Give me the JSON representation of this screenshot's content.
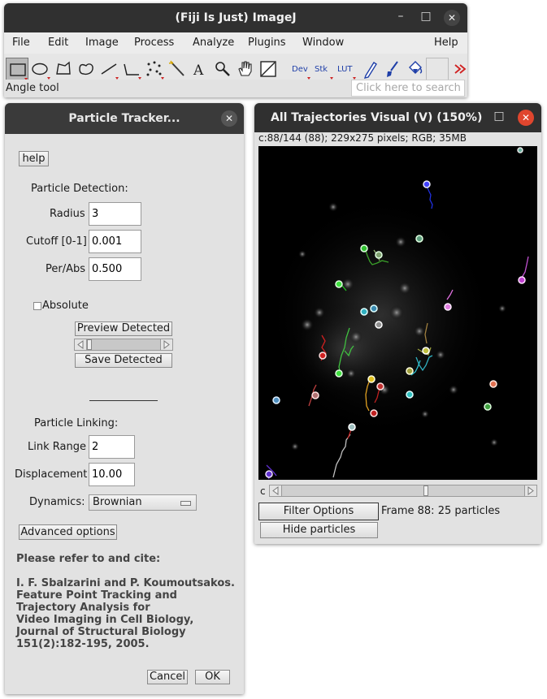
{
  "imagej": {
    "title": "(Fiji Is Just) ImageJ",
    "menu": [
      "File",
      "Edit",
      "Image",
      "Process",
      "Analyze",
      "Plugins",
      "Window",
      "Help"
    ],
    "tools": [
      "rectangle-tool",
      "oval-tool",
      "polygon-tool",
      "freehand-tool",
      "line-tool",
      "angle-tool",
      "multipoint-tool",
      "wand-tool",
      "text-tool",
      "magnifying-glass-tool",
      "hand-tool",
      "color-picker-tool",
      "Dev",
      "Stk",
      "LUT",
      "pencil-tool",
      "brush-tool",
      "flood-fill-tool",
      "empty-slot",
      "more-tools"
    ],
    "status": "Angle tool",
    "search_placeholder": "Click here to search"
  },
  "tracker": {
    "title": "Particle Tracker...",
    "help_label": "help",
    "detection_heading": "Particle Detection:",
    "radius_label": "Radius",
    "radius_value": "3",
    "cutoff_label": "Cutoff [0-1]",
    "cutoff_value": "0.001",
    "perabs_label": "Per/Abs",
    "perabs_value": "0.500",
    "absolute_label": "Absolute",
    "absolute_checked": false,
    "preview_label": "Preview Detected",
    "save_label": "Save Detected",
    "linking_heading": "Particle Linking:",
    "link_range_label": "Link Range",
    "link_range_value": "2",
    "displacement_label": "Displacement",
    "displacement_value": "10.00",
    "dynamics_label": "Dynamics:",
    "dynamics_value": "Brownian",
    "advanced_label": "Advanced options",
    "cite_heading": "Please refer to and cite:",
    "cite_lines": [
      "I. F. Sbalzarini and P. Koumoutsakos.",
      "Feature Point Tracking and",
      "Trajectory Analysis for",
      "Video Imaging in Cell Biology,",
      "Journal of Structural Biology",
      "151(2):182-195, 2005."
    ],
    "cancel_label": "Cancel",
    "ok_label": "OK"
  },
  "viewer": {
    "title": "All Trajectories Visual (V) (150%)",
    "info": "c:88/144 (88); 229x275 pixels; RGB; 35MB",
    "channel_label": "c",
    "frame": 88,
    "frame_count": 144,
    "filter_label": "Filter Options",
    "frame_status": "Frame 88: 25 particles",
    "hide_label": "Hide particles"
  },
  "colors": {
    "titlebar": "#303030",
    "close_active": "#e0462e",
    "panel": "#e2e2e2",
    "image_bg": "#000000"
  }
}
